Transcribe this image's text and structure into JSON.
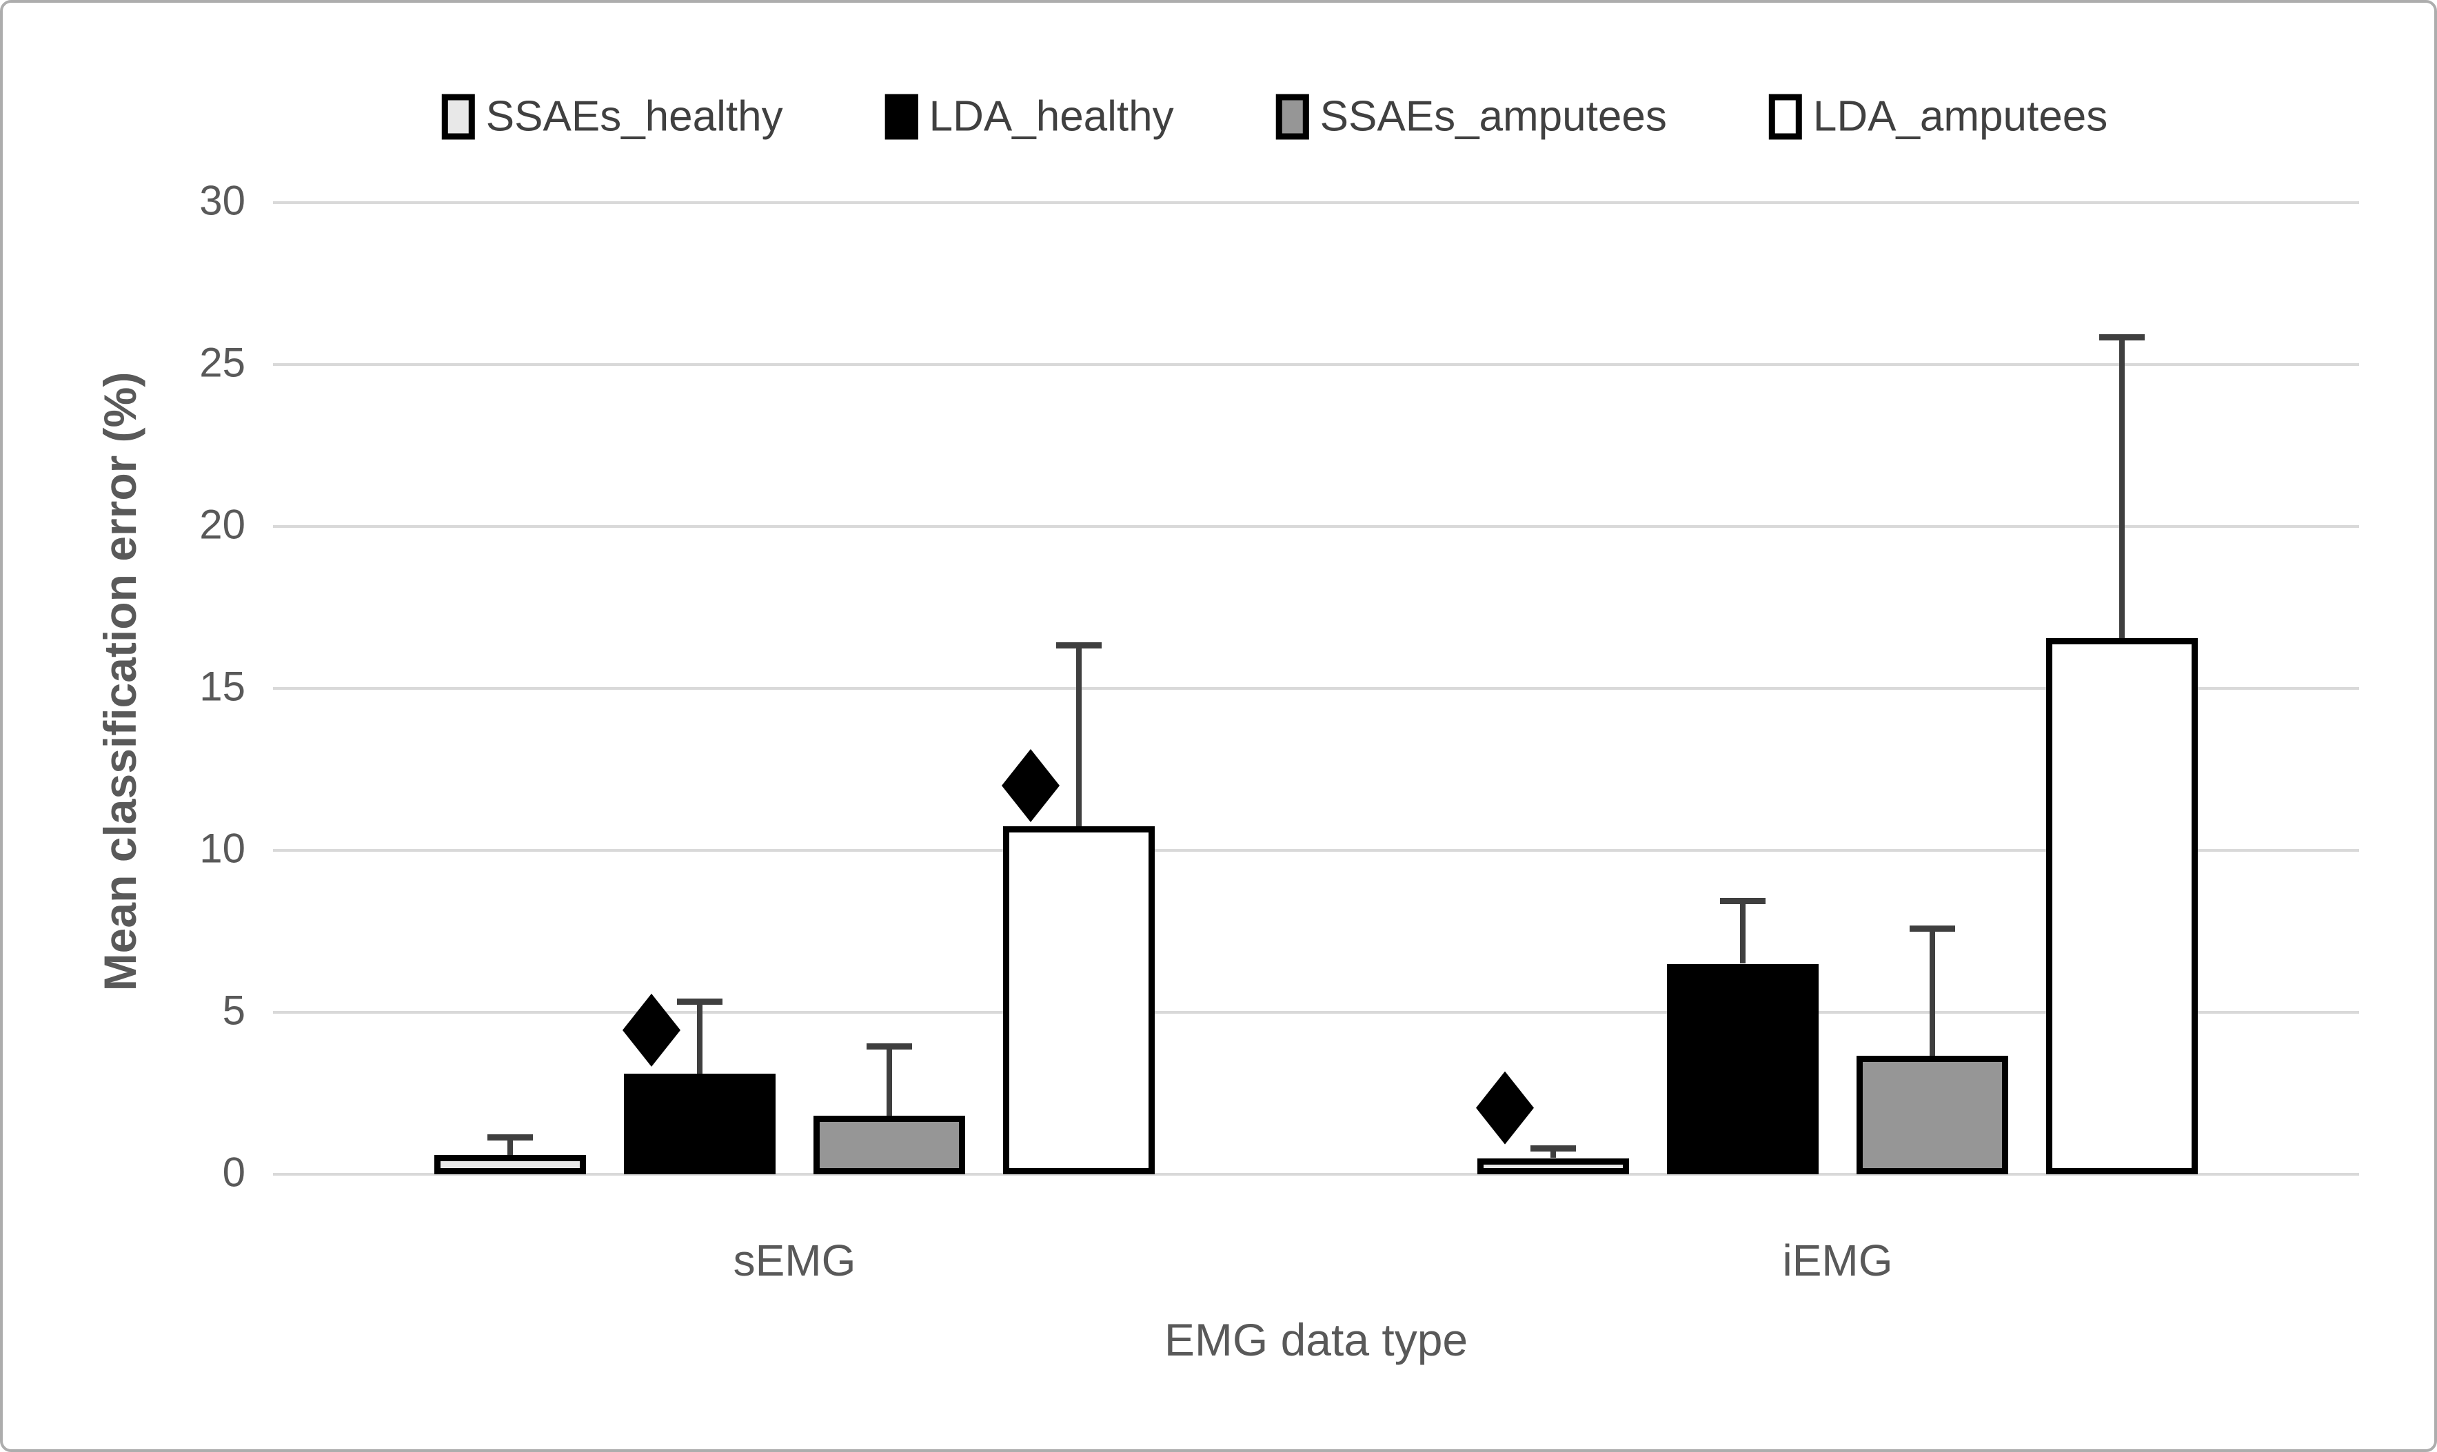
{
  "chart_data": {
    "type": "bar",
    "title": "",
    "xlabel": "EMG data type",
    "ylabel": "Mean classification error (%)",
    "ylim": [
      0,
      30
    ],
    "yticks": [
      0,
      5,
      10,
      15,
      20,
      25,
      30
    ],
    "grid": true,
    "legend_position": "top",
    "categories": [
      "sEMG",
      "iEMG"
    ],
    "series": [
      {
        "name": "SSAEs_healthy",
        "fill": "#e8e8e8",
        "values": [
          0.6,
          0.5
        ],
        "errors_plus": [
          0.55,
          0.3
        ],
        "diamond_markers": [
          null,
          2.05
        ]
      },
      {
        "name": "LDA_healthy",
        "fill": "#000000",
        "values": [
          3.1,
          6.5
        ],
        "errors_plus": [
          2.25,
          1.95
        ],
        "diamond_markers": [
          4.45,
          null
        ]
      },
      {
        "name": "SSAEs_amputees",
        "fill": "#969696",
        "values": [
          1.8,
          3.65
        ],
        "errors_plus": [
          2.15,
          3.95
        ],
        "diamond_markers": [
          null,
          null
        ]
      },
      {
        "name": "LDA_amputees",
        "fill": "#ffffff",
        "values": [
          10.75,
          16.55
        ],
        "errors_plus": [
          5.6,
          9.3
        ],
        "diamond_markers": [
          12.0,
          null
        ]
      }
    ],
    "annotations": {
      "diamond_meaning": "significance-marker"
    },
    "colors": {
      "gridline": "#d9d9d9",
      "error_bar": "#3f3f3f",
      "bar_border": "#000000",
      "text": "#595959"
    }
  }
}
